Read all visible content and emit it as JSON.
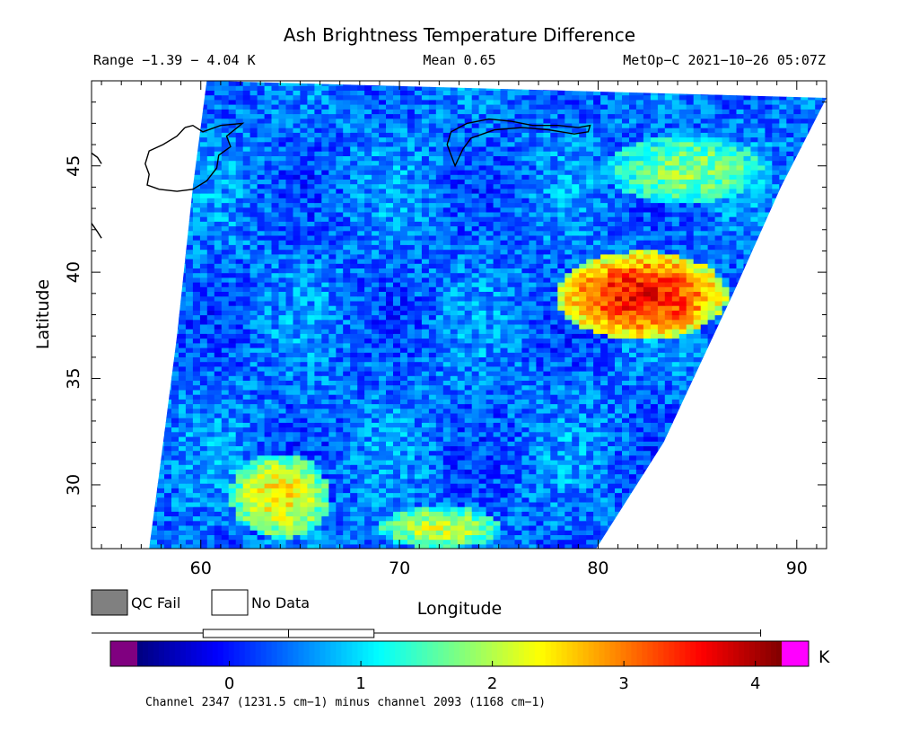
{
  "header": {
    "title": "Ash Brightness Temperature Difference",
    "range_text": "Range −1.39 − 4.04 K",
    "mean_text": "Mean 0.65",
    "satellite_time": "MetOp−C 2021−10−26 05:07Z"
  },
  "legend": {
    "qc_fail_label": "QC Fail",
    "no_data_label": "No Data",
    "qc_fail_color": "#808080",
    "no_data_color": "#ffffff"
  },
  "colorbar": {
    "unit": "K",
    "ticks": [
      "0",
      "1",
      "2",
      "3",
      "4"
    ],
    "under_color": "#800080",
    "over_color": "#ff00ff",
    "caption": "Channel 2347 (1231.5 cm−1) minus channel 2093 (1168 cm−1)"
  },
  "chart_data": {
    "type": "heatmap",
    "title": "Ash Brightness Temperature Difference",
    "xlabel": "Longitude",
    "ylabel": "Latitude",
    "xlim": [
      54.5,
      91.5
    ],
    "ylim": [
      27,
      49
    ],
    "x_ticks": [
      60,
      70,
      80,
      90
    ],
    "y_ticks": [
      30,
      35,
      40,
      45
    ],
    "x_tick_labels": [
      "60",
      "70",
      "80",
      "90"
    ],
    "y_tick_labels": [
      "30",
      "35",
      "40",
      "45"
    ],
    "value_range": [
      -1.39,
      4.04
    ],
    "mean": 0.65,
    "units": "K",
    "colorbar_range": [
      -0.7,
      4.2
    ],
    "box_plot": {
      "p5": -0.2,
      "p25": 0.25,
      "median": 0.45,
      "p75": 1.1,
      "max": 4.04
    },
    "swath_left_edge": [
      [
        60.3,
        49
      ],
      [
        59.6,
        44
      ],
      [
        58.8,
        37
      ],
      [
        57.9,
        30.5
      ],
      [
        57.4,
        27
      ]
    ],
    "swath_right_edge": [
      [
        91.5,
        48.2
      ],
      [
        89.2,
        44
      ],
      [
        86.8,
        39
      ],
      [
        83.3,
        32
      ],
      [
        79.9,
        27
      ]
    ],
    "regions": [
      {
        "name": "ash-plume-core",
        "lon": [
          77.9,
          86.5
        ],
        "lat": [
          36.8,
          41
        ],
        "value": 3.6
      },
      {
        "name": "warm-patch-ne",
        "lon": [
          80.5,
          88.5
        ],
        "lat": [
          43.2,
          46.5
        ],
        "value": 1.8
      },
      {
        "name": "warm-patch-sw",
        "lon": [
          61.5,
          66.5
        ],
        "lat": [
          27.5,
          31.5
        ],
        "value": 2.4
      },
      {
        "name": "warm-patch-south",
        "lon": [
          69,
          75
        ],
        "lat": [
          27,
          29
        ],
        "value": 2.1
      }
    ]
  }
}
